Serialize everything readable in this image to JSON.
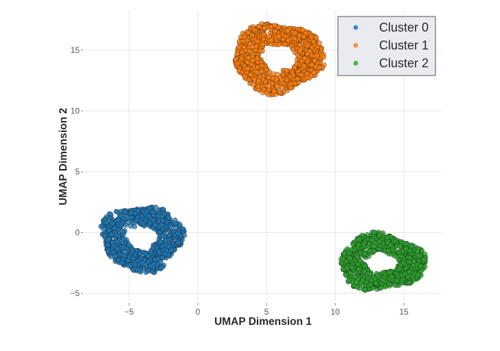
{
  "chart_data": {
    "type": "scatter",
    "title": "",
    "xlabel": "UMAP Dimension 1",
    "ylabel": "UMAP Dimension 2",
    "xlim": [
      -8.1,
      17.7
    ],
    "ylim": [
      -5.5,
      18.1
    ],
    "xticks": [
      -5,
      0,
      5,
      10,
      15
    ],
    "yticks": [
      -5,
      0,
      5,
      10,
      15
    ],
    "xtick_labels": [
      "−5",
      "0",
      "5",
      "10",
      "15"
    ],
    "ytick_labels": [
      "−5",
      "0",
      "5",
      "10",
      "15"
    ],
    "grid": true,
    "legend_position": "upper right",
    "marker": {
      "size": 7,
      "opacity": 0.75,
      "edgecolor": "#1a1a1a"
    },
    "series": [
      {
        "name": "Cluster 0",
        "color": "#1f77b4",
        "center": [
          -4.1,
          -0.4
        ],
        "extent_x": [
          -7.1,
          -1.0
        ],
        "extent_y": [
          -3.2,
          2.3
        ],
        "hole_center": [
          -4.6,
          0.0
        ],
        "hole_radius": [
          0.9,
          0.8
        ],
        "n_points": 900
      },
      {
        "name": "Cluster 1",
        "color": "#ff7f0e",
        "center": [
          5.9,
          14.2
        ],
        "extent_x": [
          2.5,
          9.2
        ],
        "extent_y": [
          11.5,
          17.3
        ],
        "hole_center": [
          6.0,
          14.2
        ],
        "hole_radius": [
          1.2,
          1.1
        ],
        "n_points": 1000
      },
      {
        "name": "Cluster 2",
        "color": "#2ca02c",
        "center": [
          13.3,
          -2.6
        ],
        "extent_x": [
          10.2,
          16.6
        ],
        "extent_y": [
          -4.8,
          -0.1
        ],
        "hole_center": [
          13.3,
          -2.3
        ],
        "hole_radius": [
          1.3,
          0.6
        ],
        "n_points": 900
      }
    ]
  },
  "legend": {
    "items": [
      {
        "label": "Cluster 0",
        "color": "#1f77b4"
      },
      {
        "label": "Cluster 1",
        "color": "#ff7f0e"
      },
      {
        "label": "Cluster 2",
        "color": "#2ca02c"
      }
    ]
  },
  "axes": {
    "x_title": "UMAP Dimension 1",
    "y_title": "UMAP Dimension 2"
  }
}
